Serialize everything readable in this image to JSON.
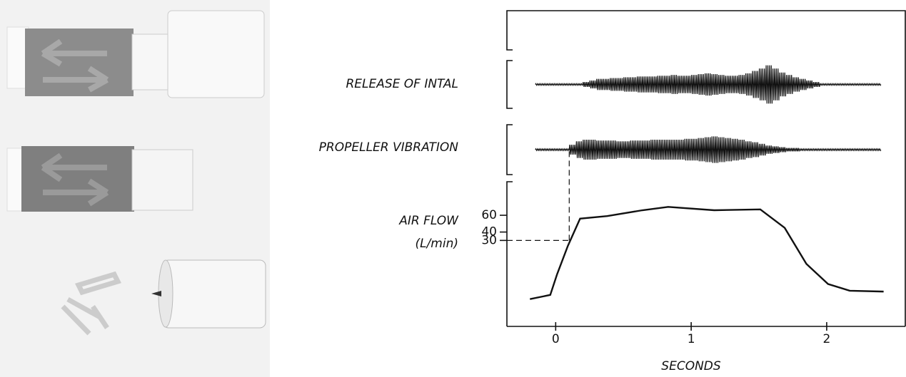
{
  "chart_data": {
    "xlabel": "SECONDS",
    "xlim": [
      -0.36,
      2.58
    ],
    "xticks": [
      0,
      1,
      2
    ],
    "marker": {
      "x": 0.1,
      "y": 30
    },
    "panels": [
      {
        "type": "envelope",
        "label": "RELEASE OF INTAL",
        "ylim": [
          -30,
          30
        ],
        "x": [
          -0.15,
          -0.1,
          -0.05,
          0,
          0.05,
          0.1,
          0.15,
          0.2,
          0.25,
          0.3,
          0.35,
          0.4,
          0.45,
          0.5,
          0.55,
          0.6,
          0.65,
          0.7,
          0.75,
          0.8,
          0.85,
          0.9,
          0.95,
          1,
          1.05,
          1.1,
          1.15,
          1.2,
          1.25,
          1.3,
          1.35,
          1.4,
          1.45,
          1.5,
          1.55,
          1.6,
          1.65,
          1.7,
          1.75,
          1.8,
          1.85,
          1.9,
          1.95,
          2,
          2.05,
          2.1,
          2.15,
          2.2,
          2.25,
          2.3,
          2.35
        ],
        "values": [
          1,
          1,
          1,
          1,
          1,
          1,
          1,
          3,
          5,
          7,
          7,
          8,
          8,
          9,
          9,
          10,
          10,
          10,
          11,
          11,
          12,
          11,
          11,
          12,
          13,
          14,
          13,
          12,
          11,
          11,
          12,
          14,
          17,
          20,
          24,
          20,
          15,
          12,
          9,
          7,
          5,
          3,
          1,
          1,
          1,
          1,
          1,
          1,
          1,
          1,
          1
        ]
      },
      {
        "type": "envelope",
        "label": "PROPELLER VIBRATION",
        "ylim": [
          -30,
          30
        ],
        "x": [
          -0.15,
          -0.1,
          -0.05,
          0,
          0.05,
          0.1,
          0.15,
          0.2,
          0.25,
          0.3,
          0.35,
          0.4,
          0.45,
          0.5,
          0.55,
          0.6,
          0.65,
          0.7,
          0.75,
          0.8,
          0.85,
          0.9,
          0.95,
          1,
          1.05,
          1.1,
          1.15,
          1.2,
          1.25,
          1.3,
          1.35,
          1.4,
          1.45,
          1.5,
          1.55,
          1.6,
          1.65,
          1.7,
          1.75,
          1.8,
          1.85,
          1.9,
          1.95,
          2,
          2.05,
          2.1,
          2.15,
          2.2,
          2.25,
          2.3,
          2.35
        ],
        "values": [
          1,
          1,
          1,
          1,
          1,
          6,
          10,
          12,
          12,
          11,
          11,
          11,
          10,
          10,
          11,
          11,
          11,
          12,
          12,
          12,
          12,
          12,
          13,
          13,
          14,
          15,
          16,
          15,
          14,
          13,
          12,
          10,
          9,
          7,
          5,
          4,
          3,
          2,
          2,
          1,
          1,
          1,
          1,
          1,
          1,
          1,
          1,
          1,
          1,
          1,
          1
        ]
      },
      {
        "type": "line",
        "label": "AIR FLOW",
        "unit": "(L/min)",
        "ylim": [
          -70,
          100
        ],
        "yticks": [
          30,
          40,
          60
        ],
        "x": [
          -0.19,
          -0.04,
          0.01,
          0.09,
          0.18,
          0.38,
          0.64,
          0.83,
          1.17,
          1.51,
          1.69,
          1.85,
          2.01,
          2.17,
          2.42
        ],
        "values": [
          -40,
          -35,
          -10.5,
          23.5,
          56,
          59,
          66,
          70,
          66,
          67,
          45,
          2,
          -22,
          -30,
          -31
        ]
      }
    ]
  }
}
